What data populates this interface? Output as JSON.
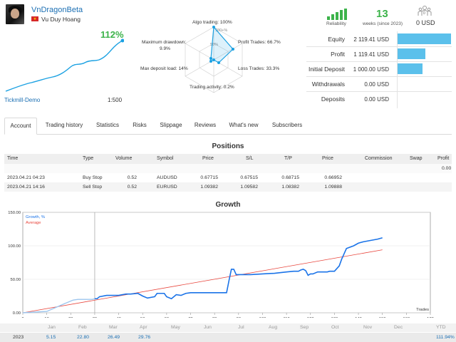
{
  "profile": {
    "name": "VnDragonBeta",
    "owner": "Vu Duy Hoang",
    "growth_pct": "112%",
    "server": "Tickmill-Demo",
    "leverage": "1:500"
  },
  "radar": {
    "algo_trading": "Algo trading: 100%",
    "profit_trades": "Profit Trades: 66.7%",
    "loss_trades": "Loss Trades: 33.3%",
    "trading_activity": "Trading activity: 0.2%",
    "max_deposit_load": "Max deposit load: 14%",
    "max_drawdown_label": "Maximum drawdown:",
    "max_drawdown_value": "9.9%",
    "ring_100": "100+%",
    "ring_50": "50%",
    "values": {
      "algo": 100,
      "profit": 66.7,
      "loss": 33.3,
      "activity": 0.2,
      "load": 14,
      "drawdown": 9.9
    }
  },
  "reliability": {
    "label": "Reliability",
    "bars": 5
  },
  "weeks": {
    "value": "13",
    "label": "weeks (since 2023)"
  },
  "subscribers": {
    "value": "0 USD"
  },
  "account_stats": [
    {
      "label": "Equity",
      "value": "2 119.41 USD",
      "fraction": 1.0
    },
    {
      "label": "Profit",
      "value": "1 119.41 USD",
      "fraction": 0.53
    },
    {
      "label": "Initial Deposit",
      "value": "1 000.00 USD",
      "fraction": 0.47
    },
    {
      "label": "Withdrawals",
      "value": "0.00 USD",
      "fraction": 0
    },
    {
      "label": "Deposits",
      "value": "0.00 USD",
      "fraction": 0
    }
  ],
  "tabs": [
    "Account",
    "Trading history",
    "Statistics",
    "Risks",
    "Slippage",
    "Reviews",
    "What's new",
    "Subscribers"
  ],
  "positions": {
    "title": "Positions",
    "headers": [
      "Time",
      "Type",
      "Volume",
      "Symbol",
      "Price",
      "S/L",
      "T/P",
      "Price",
      "Commission",
      "Swap",
      "Profit"
    ],
    "total_profit": "0.00",
    "rows": [
      [
        "2023.04.21 04:23",
        "Buy Stop",
        "0.52",
        "AUDUSD",
        "0.67715",
        "0.67515",
        "0.68715",
        "0.66952",
        "",
        "",
        ""
      ],
      [
        "2023.04.21 14:16",
        "Sell Stop",
        "0.52",
        "EURUSD",
        "1.09382",
        "1.09582",
        "1.08382",
        "1.09888",
        "",
        "",
        ""
      ]
    ]
  },
  "growth": {
    "title": "Growth",
    "months": [
      "Jan",
      "Feb",
      "Mar",
      "Apr",
      "May",
      "Jun",
      "Jul",
      "Aug",
      "Sep",
      "Oct",
      "Nov",
      "Dec",
      "YTD"
    ],
    "year": "2023",
    "year_values": [
      "5.15",
      "22.80",
      "26.49",
      "29.76",
      "",
      "",
      "",
      "",
      "",
      "",
      "",
      "",
      "111.94%"
    ]
  },
  "chart_data": {
    "type": "line",
    "xlabel": "Trades",
    "x_ticks": [
      "0",
      "10",
      "20",
      "30",
      "40",
      "50",
      "60",
      "70",
      "80",
      "90",
      "100",
      "110",
      "120",
      "130",
      "140",
      "150",
      "160",
      "170"
    ],
    "y_ticks": [
      "0.00",
      "50.00",
      "100.00",
      "150.00"
    ],
    "xlim": [
      0,
      170
    ],
    "ylim": [
      0,
      150
    ],
    "series": [
      {
        "name": "Growth, %",
        "color": "#1a73e8",
        "x": [
          0,
          10,
          17,
          21,
          23,
          25,
          26,
          29,
          30,
          31,
          32,
          35,
          40,
          43,
          45,
          48,
          50,
          52,
          55,
          56,
          59,
          60,
          62,
          64,
          66,
          68,
          70,
          72,
          75,
          80,
          84,
          85,
          86,
          87,
          88,
          89,
          90,
          95,
          100,
          105,
          110,
          113,
          115,
          116,
          117,
          118,
          119,
          120,
          121,
          123,
          125,
          127,
          128,
          130,
          131,
          132,
          133,
          134,
          135,
          138,
          140,
          142,
          145,
          148,
          150
        ],
        "y": [
          0,
          2,
          13,
          19,
          20,
          20,
          20,
          20,
          21,
          21,
          24,
          26,
          26,
          28,
          28,
          29,
          25,
          22,
          24,
          29,
          29,
          24,
          21,
          27,
          26,
          29,
          30,
          30,
          30,
          30,
          30,
          30,
          48,
          65,
          65,
          57,
          57,
          57,
          58,
          59,
          61,
          62,
          62,
          64,
          65,
          63,
          56,
          58,
          58,
          61,
          61,
          61,
          62,
          62,
          66,
          70,
          80,
          88,
          96,
          100,
          104,
          106,
          108,
          110,
          112
        ]
      },
      {
        "name": "Average",
        "color": "#e8453c",
        "x": [
          0,
          150
        ],
        "y": [
          0,
          94
        ]
      }
    ],
    "cursor_x": 30
  }
}
